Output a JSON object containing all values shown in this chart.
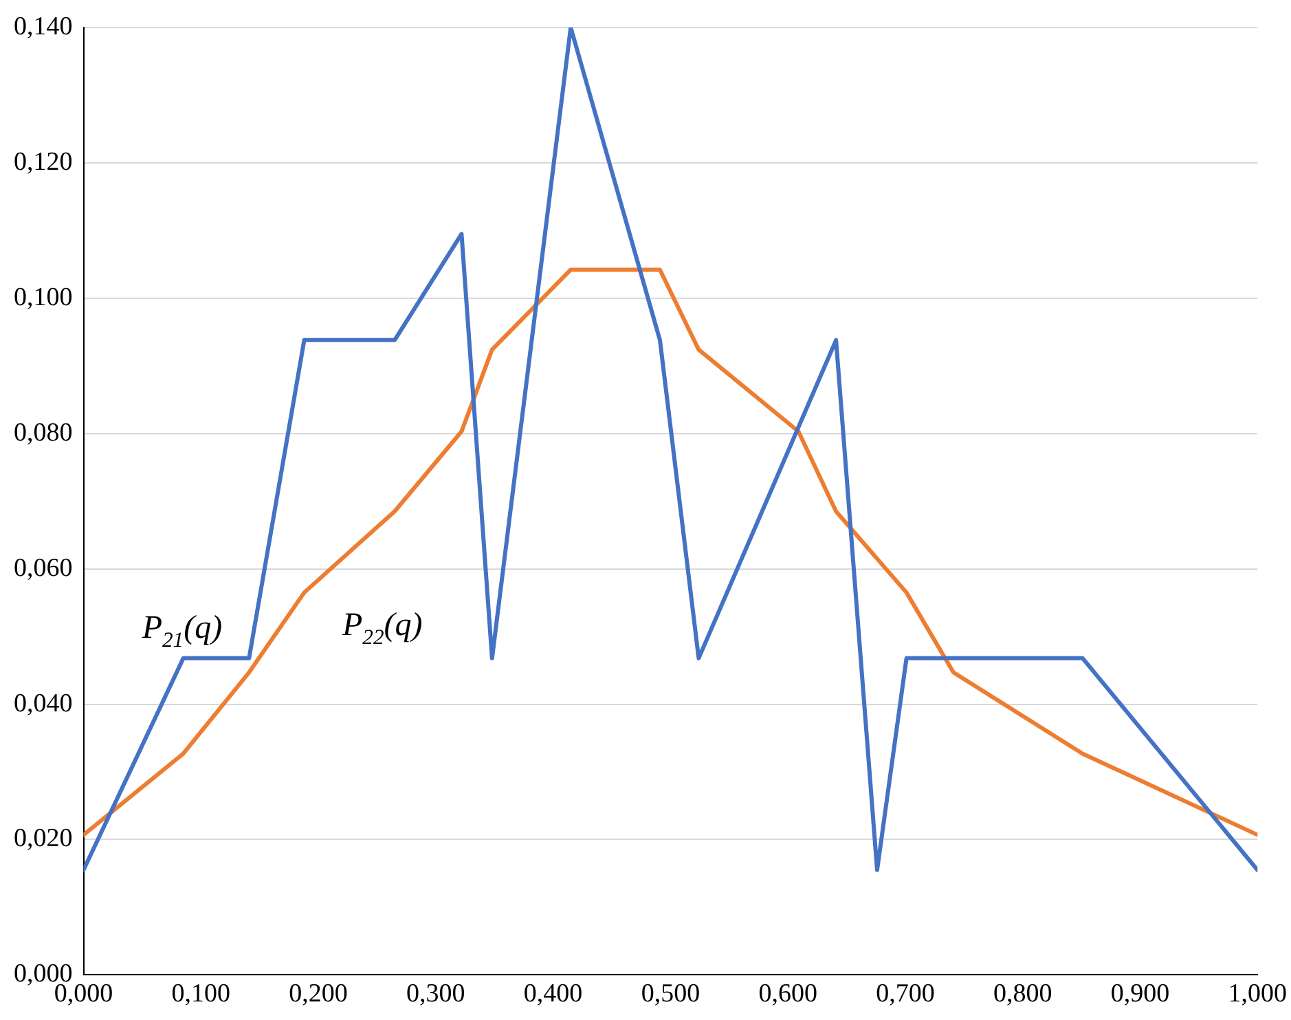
{
  "chart_data": {
    "type": "line",
    "xlim": [
      0,
      1
    ],
    "xticks": [
      {
        "value": 0,
        "label": "0,000"
      },
      {
        "value": 0.1,
        "label": "0,100"
      },
      {
        "value": 0.2,
        "label": "0,200"
      },
      {
        "value": 0.3,
        "label": "0,300"
      },
      {
        "value": 0.4,
        "label": "0,400"
      },
      {
        "value": 0.5,
        "label": "0,500"
      },
      {
        "value": 0.6,
        "label": "0,600"
      },
      {
        "value": 0.7,
        "label": "0,700"
      },
      {
        "value": 0.8,
        "label": "0,800"
      },
      {
        "value": 0.9,
        "label": "0,900"
      },
      {
        "value": 1,
        "label": "1,000"
      }
    ],
    "ylim": [
      0,
      0.14
    ],
    "yticks": [
      {
        "value": 0,
        "label": "0,000"
      },
      {
        "value": 0.02,
        "label": "0,020"
      },
      {
        "value": 0.04,
        "label": "0,040"
      },
      {
        "value": 0.06,
        "label": "0,060"
      },
      {
        "value": 0.08,
        "label": "0,080"
      },
      {
        "value": 0.1,
        "label": "0,100"
      },
      {
        "value": 0.12,
        "label": "0,120"
      },
      {
        "value": 0.14,
        "label": "0,140"
      }
    ],
    "grid": "y",
    "legend": false,
    "marker": "none",
    "line_style": "solid",
    "series": [
      {
        "name": "P$_{21}$(q)",
        "color": "#4472c4",
        "x": [
          0,
          0.085,
          0.141,
          0.188,
          0.265,
          0.322,
          0.348,
          0.415,
          0.491,
          0.524,
          0.641,
          0.676,
          0.701,
          0.851,
          1
        ],
        "values": [
          0.0155,
          0.0468,
          0.0468,
          0.0938,
          0.0938,
          0.1095,
          0.0468,
          0.14,
          0.0938,
          0.0468,
          0.0938,
          0.0155,
          0.0468,
          0.0468,
          0.0155
        ]
      },
      {
        "name": "P$_{22}$(q)",
        "color": "#ed7d31",
        "x": [
          0,
          0.085,
          0.141,
          0.188,
          0.265,
          0.322,
          0.348,
          0.415,
          0.491,
          0.524,
          0.609,
          0.641,
          0.701,
          0.741,
          0.851,
          1
        ],
        "values": [
          0.0207,
          0.0327,
          0.0447,
          0.0565,
          0.0685,
          0.0803,
          0.0924,
          0.1042,
          0.1042,
          0.0924,
          0.0803,
          0.0685,
          0.0565,
          0.0447,
          0.0327,
          0.0207
        ]
      }
    ]
  }
}
